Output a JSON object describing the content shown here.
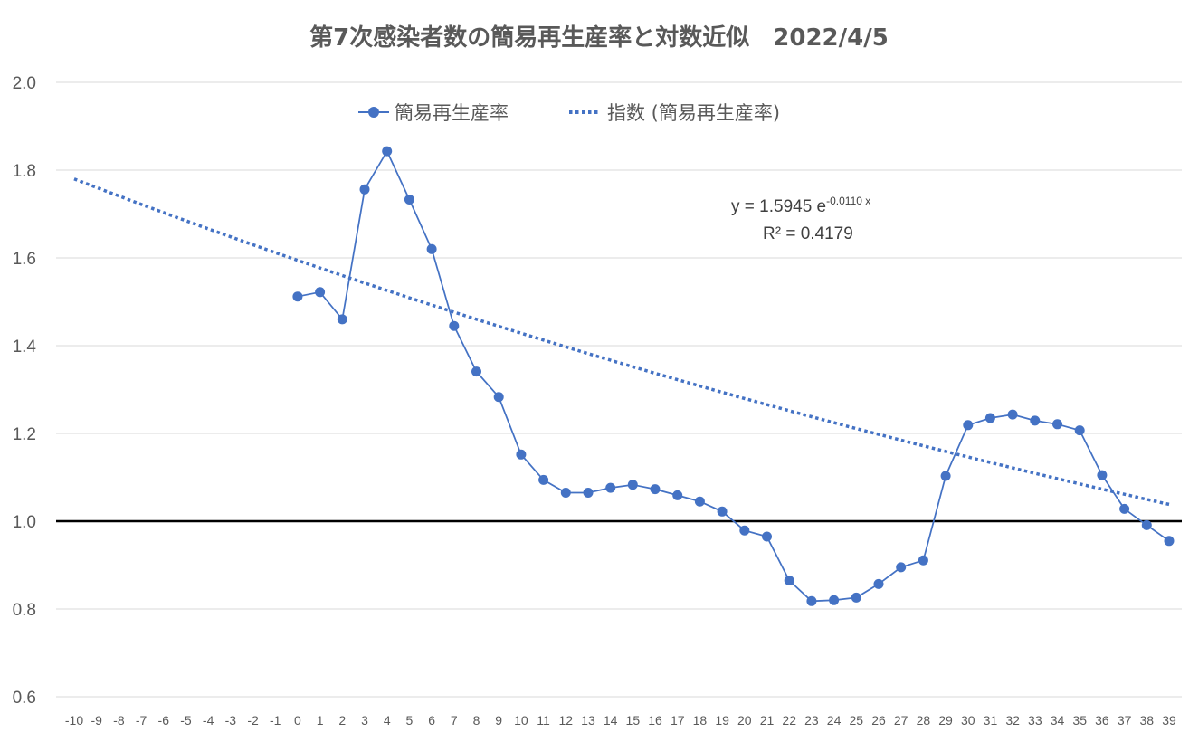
{
  "chart_data": {
    "type": "line",
    "title": "第7次感染者数の簡易再生産率と対数近似　2022/4/5",
    "xlabel": "",
    "ylabel": "",
    "ylim": [
      0.6,
      2.0
    ],
    "yticks": [
      "0.6",
      "0.8",
      "1.0",
      "1.2",
      "1.4",
      "1.6",
      "1.8",
      "2.0"
    ],
    "xlim": [
      -10,
      39
    ],
    "xticks": [
      "-10",
      "-9",
      "-8",
      "-7",
      "-6",
      "-5",
      "-4",
      "-3",
      "-2",
      "-1",
      "0",
      "1",
      "2",
      "3",
      "4",
      "5",
      "6",
      "7",
      "8",
      "9",
      "10",
      "11",
      "12",
      "13",
      "14",
      "15",
      "16",
      "17",
      "18",
      "19",
      "20",
      "21",
      "22",
      "23",
      "24",
      "25",
      "26",
      "27",
      "28",
      "29",
      "30",
      "31",
      "32",
      "33",
      "34",
      "35",
      "36",
      "37",
      "38",
      "39"
    ],
    "grid": true,
    "legend_position": "top-center",
    "reference_line": 1.0,
    "series": [
      {
        "name": "簡易再生産率",
        "color": "#4472c4",
        "style": "line-markers",
        "x": [
          0,
          1,
          2,
          3,
          4,
          5,
          6,
          7,
          8,
          9,
          10,
          11,
          12,
          13,
          14,
          15,
          16,
          17,
          18,
          19,
          20,
          21,
          22,
          23,
          24,
          25,
          26,
          27,
          28,
          29,
          30,
          31,
          32,
          33,
          34,
          35,
          36,
          37,
          38,
          39
        ],
        "values": [
          1.512,
          1.522,
          1.46,
          1.756,
          1.843,
          1.733,
          1.62,
          1.445,
          1.341,
          1.283,
          1.152,
          1.094,
          1.065,
          1.065,
          1.076,
          1.083,
          1.073,
          1.059,
          1.045,
          1.022,
          0.979,
          0.965,
          0.865,
          0.818,
          0.82,
          0.826,
          0.857,
          0.895,
          0.911,
          1.103,
          1.219,
          1.235,
          1.243,
          1.229,
          1.221,
          1.207,
          1.105,
          1.028,
          0.991,
          0.955
        ]
      },
      {
        "name": "指数 (簡易再生産率)",
        "color": "#4472c4",
        "style": "dotted",
        "trend": {
          "a": 1.5945,
          "b": -0.011,
          "x_from": -10,
          "x_to": 39
        }
      }
    ],
    "annotation": {
      "equation_base": "y = 1.5945 e",
      "equation_exp": "-0.0110 x",
      "r2": "R² = 0.4179"
    }
  }
}
